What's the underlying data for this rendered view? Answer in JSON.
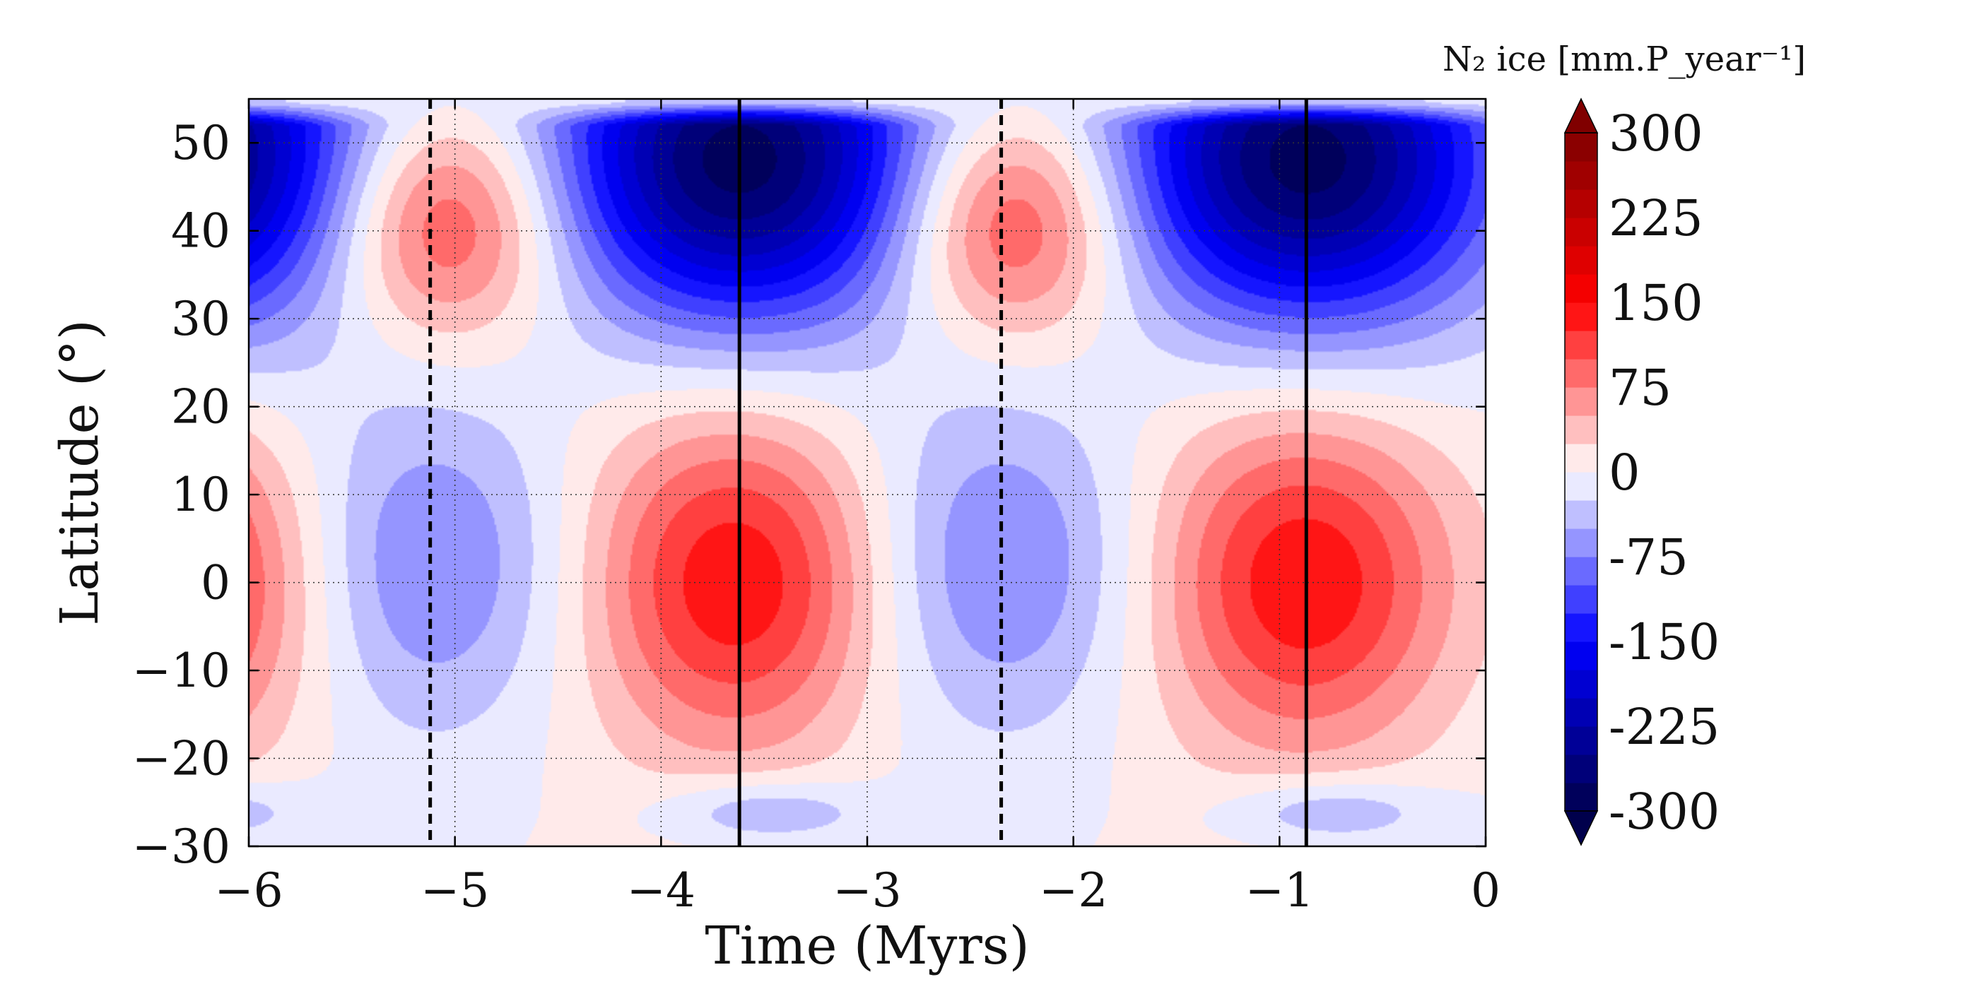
{
  "chart_data": {
    "type": "contourf",
    "title": "",
    "xlabel": "Time (Myrs)",
    "ylabel": "Latitude (°)",
    "xlim": [
      -6,
      0
    ],
    "ylim": [
      -30,
      55
    ],
    "xticks": [
      -6,
      -5,
      -4,
      -3,
      -2,
      -1,
      0
    ],
    "xtick_labels": [
      "−6",
      "−5",
      "−4",
      "−3",
      "−2",
      "−1",
      "0"
    ],
    "yticks": [
      -30,
      -20,
      -10,
      0,
      10,
      20,
      30,
      40,
      50
    ],
    "ytick_labels": [
      "−30",
      "−20",
      "−10",
      "0",
      "10",
      "20",
      "30",
      "40",
      "50"
    ],
    "grid": true,
    "period_myrs": 2.75,
    "vlines": [
      {
        "x": -5.12,
        "style": "dashed"
      },
      {
        "x": -3.62,
        "style": "solid"
      },
      {
        "x": -2.35,
        "style": "dashed"
      },
      {
        "x": -0.87,
        "style": "solid"
      }
    ],
    "features": [
      {
        "kind": "sublimation",
        "center_time": -3.62,
        "center_lat": 48,
        "time_halfwidth": 0.95,
        "lat_halfwidth": 20,
        "peak": -290
      },
      {
        "kind": "sublimation",
        "center_time": -0.87,
        "center_lat": 48,
        "time_halfwidth": 0.95,
        "lat_halfwidth": 20,
        "peak": -290
      },
      {
        "kind": "sublimation",
        "center_time": -6.37,
        "center_lat": 48,
        "time_halfwidth": 0.95,
        "lat_halfwidth": 20,
        "peak": -290
      },
      {
        "kind": "condensation",
        "center_time": -5.05,
        "center_lat": 41,
        "time_halfwidth": 0.6,
        "lat_halfwidth": 14,
        "peak": 130
      },
      {
        "kind": "condensation",
        "center_time": -2.3,
        "center_lat": 41,
        "time_halfwidth": 0.6,
        "lat_halfwidth": 14,
        "peak": 130
      },
      {
        "kind": "condensation",
        "center_time": -3.62,
        "center_lat": 0,
        "time_halfwidth": 0.75,
        "lat_halfwidth": 20,
        "peak": 140
      },
      {
        "kind": "condensation",
        "center_time": -0.87,
        "center_lat": 0,
        "time_halfwidth": 0.75,
        "lat_halfwidth": 20,
        "peak": 140
      },
      {
        "kind": "condensation",
        "center_time": -6.37,
        "center_lat": 0,
        "time_halfwidth": 0.75,
        "lat_halfwidth": 20,
        "peak": 140
      },
      {
        "kind": "sublimation",
        "center_time": -5.12,
        "center_lat": 2,
        "time_halfwidth": 0.75,
        "lat_halfwidth": 20,
        "peak": -80
      },
      {
        "kind": "sublimation",
        "center_time": -2.35,
        "center_lat": 2,
        "time_halfwidth": 0.75,
        "lat_halfwidth": 20,
        "peak": -80
      },
      {
        "kind": "sublimation",
        "center_time": -3.5,
        "center_lat": -26,
        "time_halfwidth": 0.55,
        "lat_halfwidth": 4,
        "peak": -60
      },
      {
        "kind": "sublimation",
        "center_time": -0.75,
        "center_lat": -26,
        "time_halfwidth": 0.55,
        "lat_halfwidth": 4,
        "peak": -60
      },
      {
        "kind": "sublimation",
        "center_time": -6.25,
        "center_lat": -26,
        "time_halfwidth": 0.55,
        "lat_halfwidth": 4,
        "peak": -60
      }
    ],
    "colorbar": {
      "label": "N₂ ice [mm.P_year⁻¹]",
      "min": -300,
      "max": 300,
      "step": 25,
      "extend": "both",
      "tick_values": [
        300,
        225,
        150,
        75,
        0,
        -75,
        -150,
        -225,
        -300
      ],
      "tick_labels": [
        "300",
        "225",
        "150",
        "75",
        "0",
        "-75",
        "-150",
        "-225",
        "-300"
      ],
      "cmap": "seismic"
    },
    "colors": {
      "positive_max": "#800000",
      "positive_mid": "#ff0000",
      "neutral": "#ffffff",
      "negative_mid": "#0000ff",
      "negative_max": "#00004c"
    }
  }
}
